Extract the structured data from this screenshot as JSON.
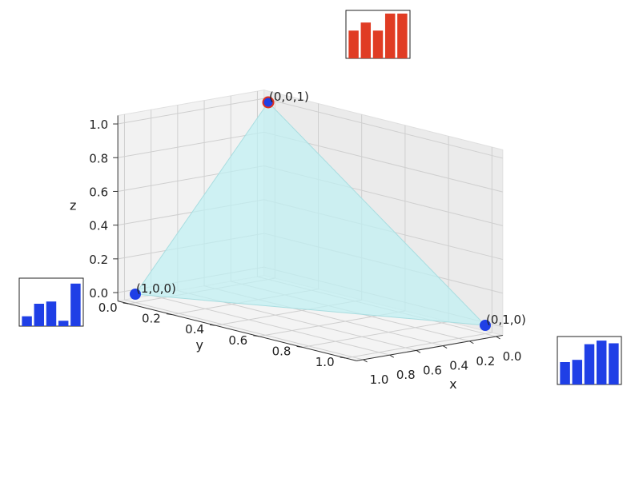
{
  "chart_data": [
    {
      "type": "scatter",
      "variant": "3d-simplex",
      "points": [
        {
          "x": 1,
          "y": 0,
          "z": 0,
          "label": "(1,0,0)"
        },
        {
          "x": 0,
          "y": 1,
          "z": 0,
          "label": "(0,1,0)"
        },
        {
          "x": 0,
          "y": 0,
          "z": 1,
          "label": "(0,0,1)"
        }
      ],
      "surface": {
        "fill": "#bff0f2",
        "description": "triangle through the three vertices"
      },
      "point_color": "#1f3fe6",
      "point_edge_highlight": "#e03020",
      "xlabel": "x",
      "ylabel": "y",
      "zlabel": "z",
      "xlim": [
        0,
        1
      ],
      "ylim": [
        0,
        1
      ],
      "zlim": [
        0,
        1
      ],
      "xticks": [
        "1.0",
        "0.8",
        "0.6",
        "0.4",
        "0.2",
        "0.0"
      ],
      "yticks": [
        "0.0",
        "0.2",
        "0.4",
        "0.6",
        "0.8",
        "1.0"
      ],
      "zticks": [
        "0.0",
        "0.2",
        "0.4",
        "0.6",
        "0.8",
        "1.0"
      ],
      "grid": true
    },
    {
      "type": "bar",
      "attached_to": "(0,0,1)",
      "color": "#e03c24",
      "values": [
        0.62,
        0.8,
        0.62,
        1.0,
        1.0
      ]
    },
    {
      "type": "bar",
      "attached_to": "(1,0,0)",
      "color": "#1f3fe6",
      "values": [
        0.22,
        0.5,
        0.55,
        0.12,
        0.95
      ]
    },
    {
      "type": "bar",
      "attached_to": "(0,1,0)",
      "color": "#1f3fe6",
      "values": [
        0.5,
        0.55,
        0.9,
        0.98,
        0.92
      ]
    }
  ]
}
